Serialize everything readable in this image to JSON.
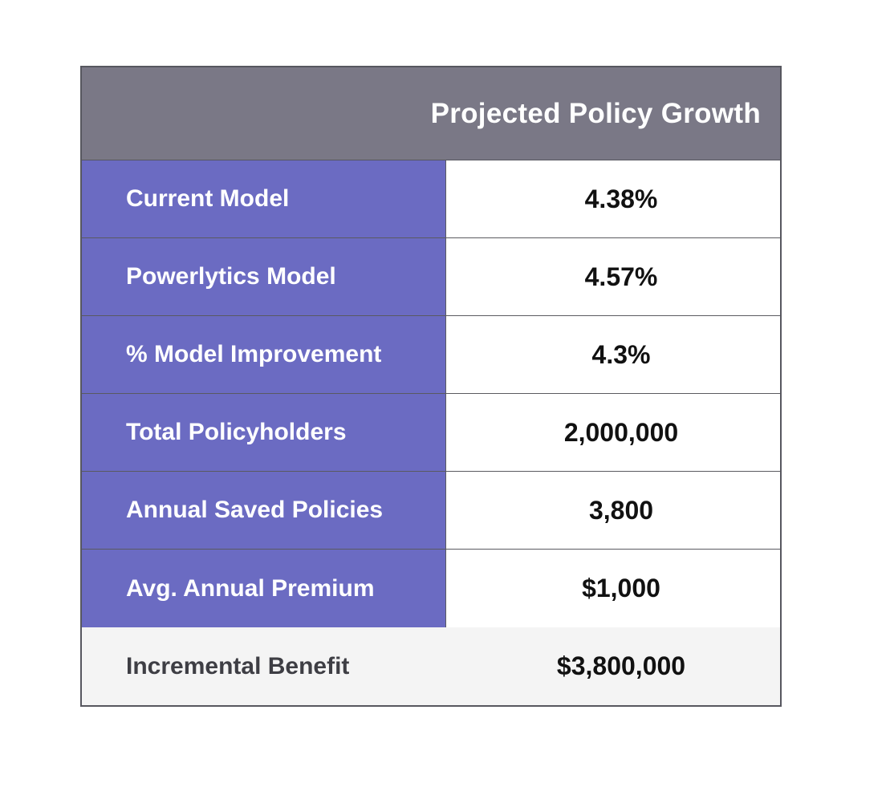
{
  "chart_data": {
    "type": "table",
    "columns": [
      "",
      "Projected Policy Growth"
    ],
    "rows": [
      {
        "label": "Current Model",
        "value": "4.38%"
      },
      {
        "label": "Powerlytics Model",
        "value": "4.57%"
      },
      {
        "label": "% Model Improvement",
        "value": "4.3%"
      },
      {
        "label": "Total Policyholders",
        "value": "2,000,000"
      },
      {
        "label": "Annual Saved Policies",
        "value": "3,800"
      },
      {
        "label": "Avg. Annual Premium",
        "value": "$1,000"
      }
    ],
    "total": {
      "label": "Incremental Benefit",
      "value": "$3,800,000"
    }
  },
  "colors": {
    "header_bg": "#7a7886",
    "label_bg": "#6b6bc2",
    "total_bg": "#f4f4f4",
    "border": "#57575f"
  }
}
